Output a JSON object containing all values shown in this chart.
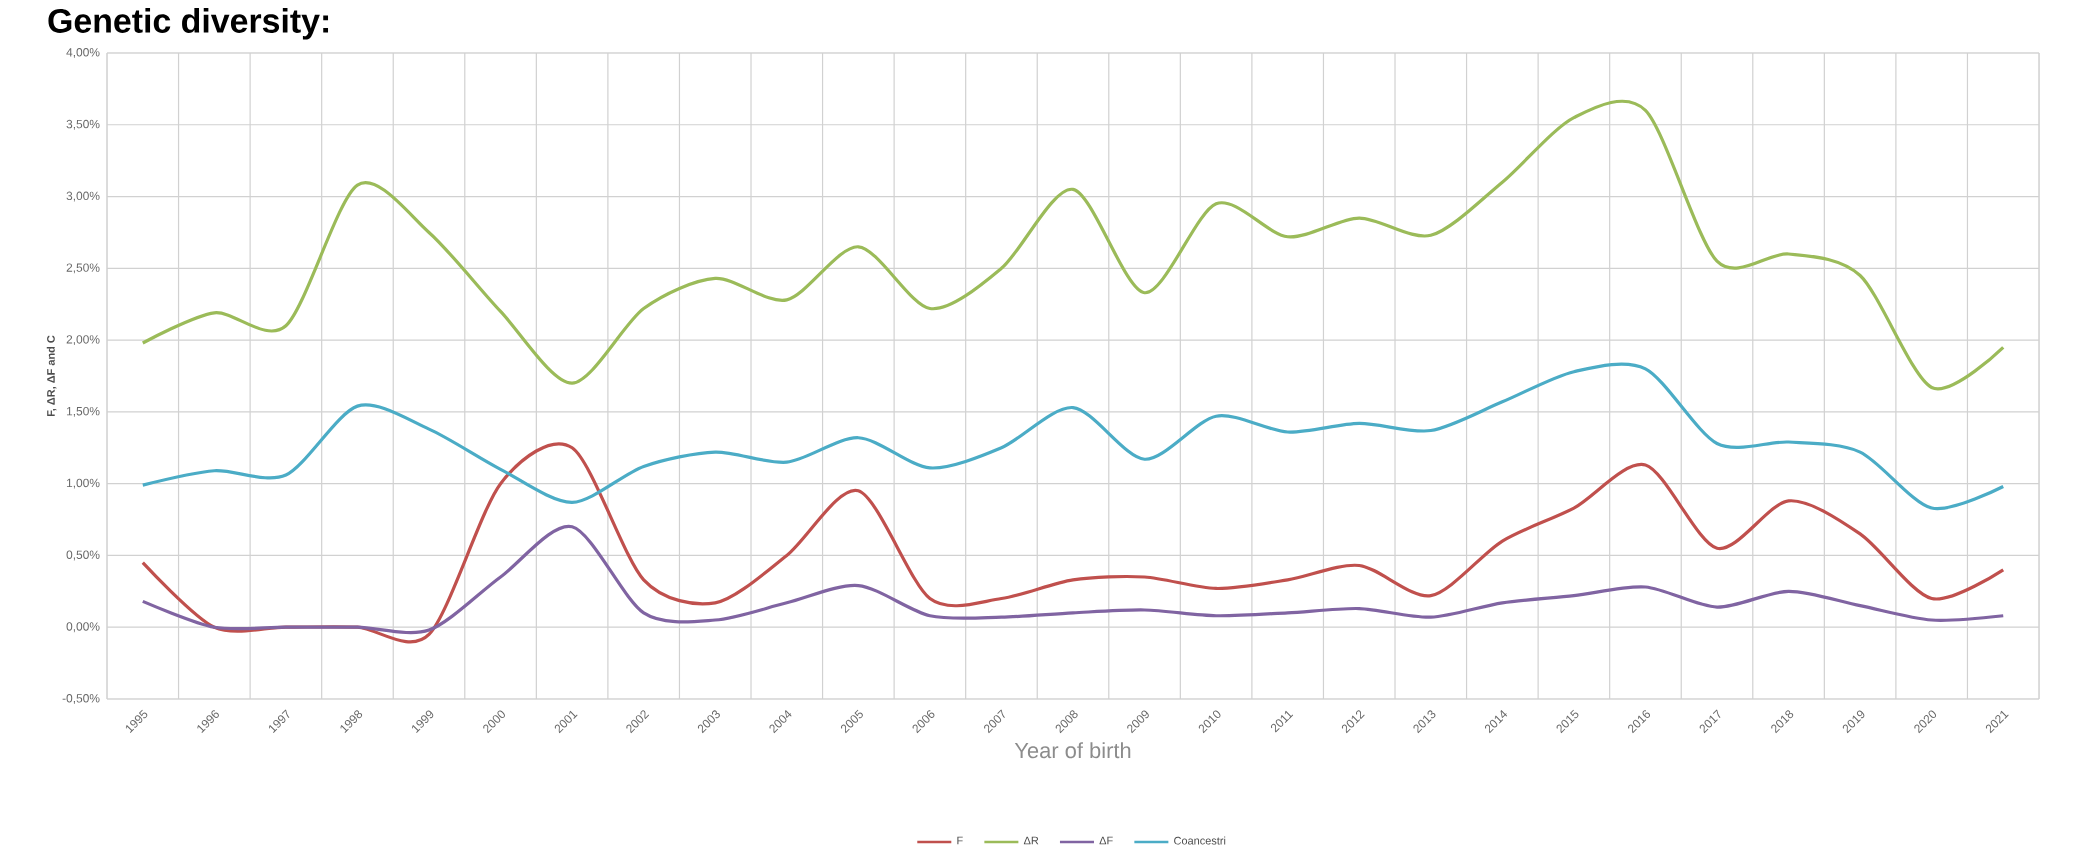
{
  "chart_data": {
    "type": "line",
    "title": "Genetic diversity:",
    "xlabel": "Year of birth",
    "ylabel": "F, ΔR, ΔF and C",
    "categories": [
      "1995",
      "1996",
      "1997",
      "1998",
      "1999",
      "2000",
      "2001",
      "2002",
      "2003",
      "2004",
      "2005",
      "2006",
      "2007",
      "2008",
      "2009",
      "2010",
      "2011",
      "2012",
      "2013",
      "2014",
      "2015",
      "2016",
      "2017",
      "2018",
      "2019",
      "2020",
      "2021"
    ],
    "series": [
      {
        "name": "F",
        "color": "#c0504d",
        "values": [
          0.45,
          0.0,
          0.0,
          0.0,
          -0.05,
          1.0,
          1.25,
          0.33,
          0.17,
          0.5,
          0.95,
          0.2,
          0.2,
          0.33,
          0.35,
          0.27,
          0.33,
          0.43,
          0.22,
          0.6,
          0.83,
          1.13,
          0.55,
          0.88,
          0.65,
          0.2,
          0.4
        ]
      },
      {
        "name": "ΔR",
        "color": "#9bbb59",
        "values": [
          1.98,
          2.19,
          2.1,
          3.08,
          2.75,
          2.2,
          1.7,
          2.22,
          2.43,
          2.28,
          2.65,
          2.22,
          2.5,
          3.05,
          2.33,
          2.95,
          2.72,
          2.85,
          2.73,
          3.1,
          3.55,
          3.6,
          2.55,
          2.6,
          2.45,
          1.67,
          1.95
        ]
      },
      {
        "name": "ΔF",
        "color": "#8064a2",
        "values": [
          0.18,
          0.0,
          0.0,
          0.0,
          -0.02,
          0.35,
          0.7,
          0.1,
          0.05,
          0.17,
          0.29,
          0.08,
          0.07,
          0.1,
          0.12,
          0.08,
          0.1,
          0.13,
          0.07,
          0.17,
          0.22,
          0.28,
          0.14,
          0.25,
          0.15,
          0.05,
          0.08
        ]
      },
      {
        "name": "Coancestri",
        "color": "#4bacc6",
        "values": [
          0.99,
          1.09,
          1.06,
          1.54,
          1.38,
          1.1,
          0.87,
          1.12,
          1.22,
          1.15,
          1.32,
          1.11,
          1.25,
          1.53,
          1.17,
          1.47,
          1.36,
          1.42,
          1.37,
          1.57,
          1.78,
          1.8,
          1.28,
          1.29,
          1.22,
          0.83,
          0.98
        ]
      }
    ],
    "ylim": [
      -0.5,
      4.0
    ],
    "yticks": [
      {
        "value": -0.5,
        "label": "-0,50%"
      },
      {
        "value": 0.0,
        "label": "0,00%"
      },
      {
        "value": 0.5,
        "label": "0,50%"
      },
      {
        "value": 1.0,
        "label": "1,00%"
      },
      {
        "value": 1.5,
        "label": "1,50%"
      },
      {
        "value": 2.0,
        "label": "2,00%"
      },
      {
        "value": 2.5,
        "label": "2,50%"
      },
      {
        "value": 3.0,
        "label": "3,00%"
      },
      {
        "value": 3.5,
        "label": "3,50%"
      },
      {
        "value": 4.0,
        "label": "4,00%"
      }
    ],
    "grid": true,
    "legend": "bottom",
    "marker": "none",
    "line_style": "solid"
  }
}
